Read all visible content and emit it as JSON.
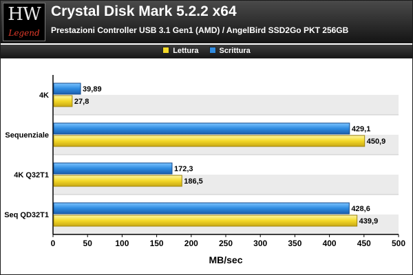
{
  "logo": {
    "top": "HW",
    "bottom": "Legend"
  },
  "chart_data": {
    "type": "bar",
    "orientation": "horizontal",
    "title": "Crystal Disk Mark 5.2.2 x64",
    "subtitle": "Prestazioni Controller USB 3.1 Gen1 (AMD) / AngelBird SSD2Go PKT 256GB",
    "xlabel": "MB/sec",
    "ylabel": "",
    "categories": [
      "4K",
      "Sequenziale",
      "4K Q32T1",
      "Seq QD32T1"
    ],
    "series": [
      {
        "name": "Scrittura",
        "color": "#2f8be0",
        "values": [
          39.89,
          429.1,
          172.3,
          428.6
        ],
        "labels": [
          "39,89",
          "429,1",
          "172,3",
          "428,6"
        ]
      },
      {
        "name": "Lettura",
        "color": "#f3d827",
        "values": [
          27.8,
          450.9,
          186.5,
          439.9
        ],
        "labels": [
          "27,8",
          "450,9",
          "186,5",
          "439,9"
        ]
      }
    ],
    "legend_order": [
      "Lettura",
      "Scrittura"
    ],
    "legend_position": "top",
    "xlim": [
      0,
      500
    ],
    "xticks": [
      0,
      50,
      100,
      150,
      200,
      250,
      300,
      350,
      400,
      450,
      500
    ],
    "grid": false
  }
}
